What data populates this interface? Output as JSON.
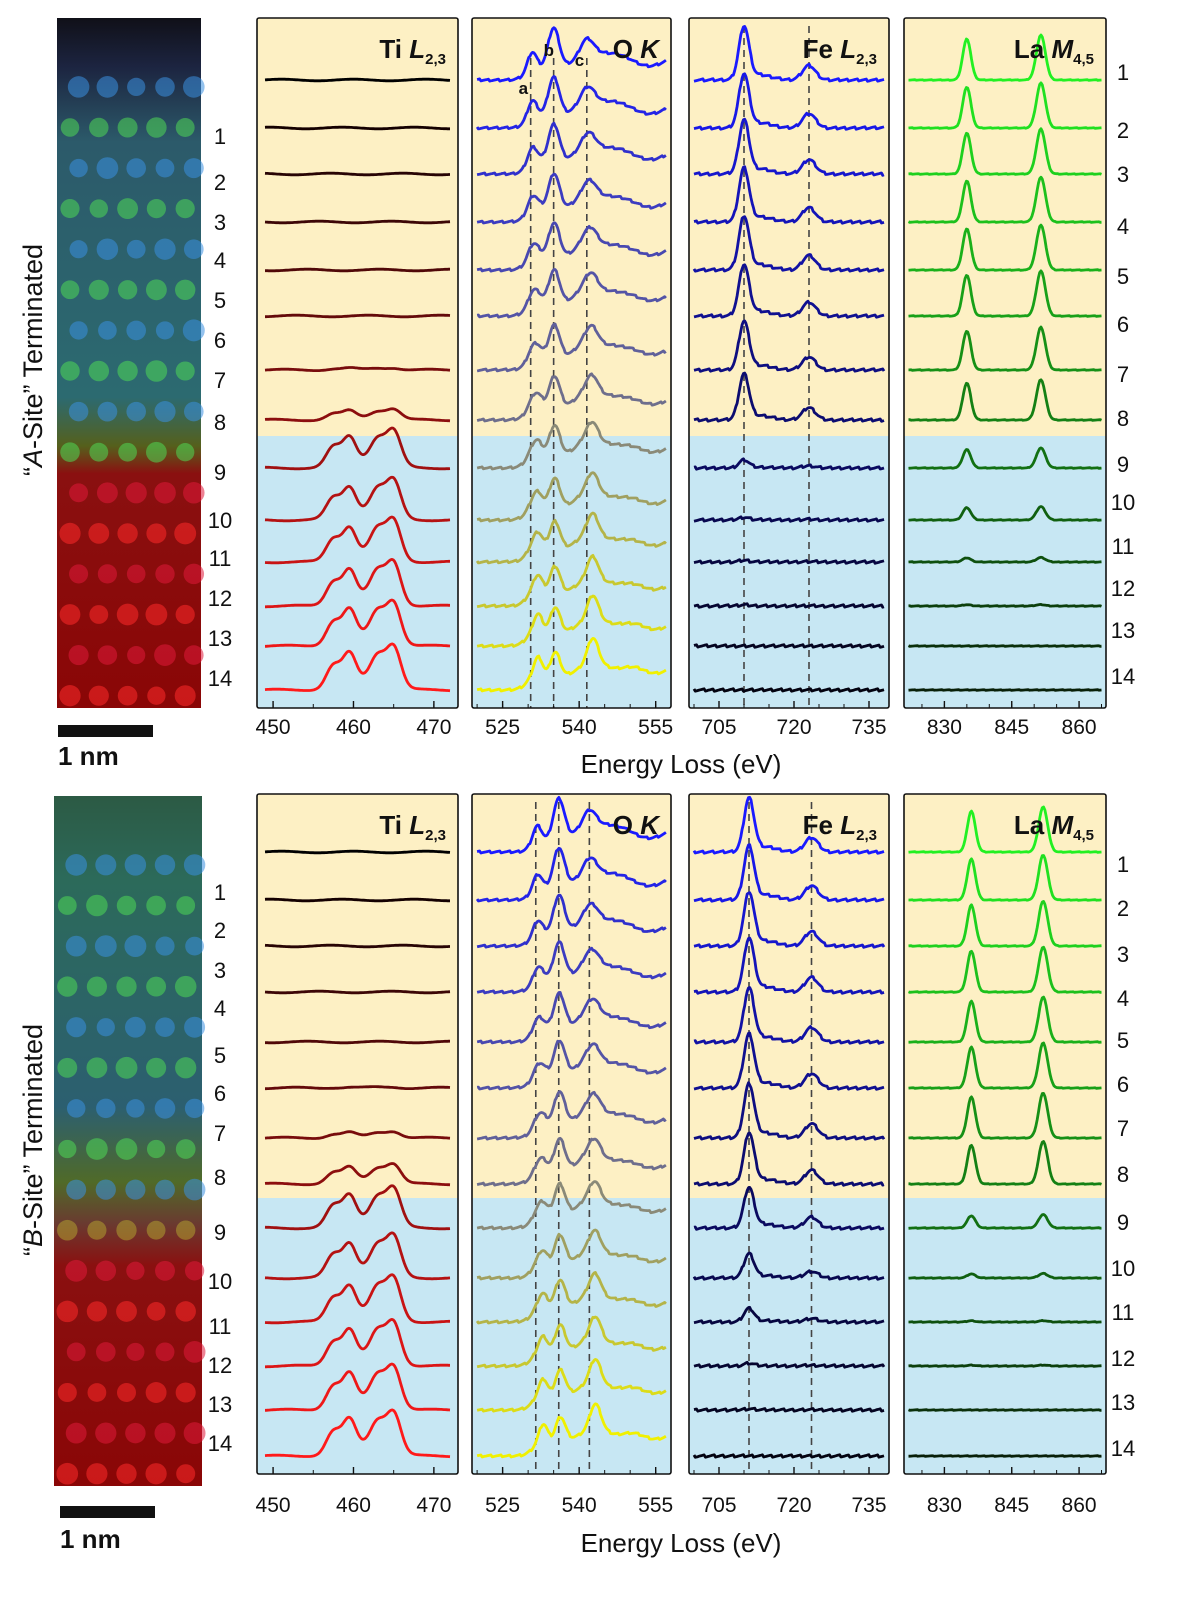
{
  "figure": {
    "scale_bar_label": "1 nm",
    "x_axis_title": "Energy Loss (eV)",
    "layer_numbers": [
      "1",
      "2",
      "3",
      "4",
      "5",
      "6",
      "7",
      "8",
      "9",
      "10",
      "11",
      "12",
      "13",
      "14"
    ]
  },
  "colors": {
    "film_background": "#fdf0c4",
    "substrate_background": "#c7e7f3",
    "axis_frame": "#111111"
  },
  "chart_data": [
    {
      "type": "line",
      "title": "Ti L2,3",
      "title_main": "Ti ",
      "title_sym": "L",
      "title_sub": "2,3",
      "panel_group": "A-Site Terminated",
      "x_range": [
        448,
        473
      ],
      "ticks": [
        450,
        460,
        470
      ],
      "tick_labels": [
        "450",
        "460",
        "470"
      ],
      "series_count": 14,
      "peaks": [
        457.5,
        459.5,
        463.0,
        465.0
      ],
      "peak_amplitude_by_layer": [
        0,
        0,
        0,
        0,
        0,
        0,
        0.05,
        0.25,
        0.85,
        0.9,
        0.95,
        1.0,
        1.0,
        1.0
      ],
      "colors": [
        "#000000",
        "#140000",
        "#280404",
        "#3c0606",
        "#500808",
        "#640a0a",
        "#780c0c",
        "#8c0e0e",
        "#a01010",
        "#b41212",
        "#c81414",
        "#dc1616",
        "#ee1818",
        "#ff1a1a"
      ]
    },
    {
      "type": "line",
      "title": "O K",
      "title_main": "O ",
      "title_sym": "K",
      "title_sub": "",
      "panel_group": "A-Site Terminated",
      "x_range": [
        519,
        558
      ],
      "ticks": [
        525,
        540,
        555
      ],
      "tick_labels": [
        "525",
        "540",
        "555"
      ],
      "dashed_lines": [
        530.5,
        535.0,
        541.5
      ],
      "peak_labels": [
        "a",
        "b",
        "c"
      ],
      "series_count": 14,
      "colors": [
        "#1a1aff",
        "#2424e6",
        "#3030cc",
        "#3c3cc0",
        "#4848b0",
        "#5454a6",
        "#60609a",
        "#6e6e8c",
        "#8a8a78",
        "#a0a060",
        "#b4b448",
        "#c8c830",
        "#dcdc18",
        "#f0f000"
      ]
    },
    {
      "type": "line",
      "title": "Fe L2,3",
      "title_main": "Fe ",
      "title_sym": "L",
      "title_sub": "2,3",
      "panel_group": "A-Site Terminated",
      "x_range": [
        699,
        739
      ],
      "ticks": [
        705,
        720,
        735
      ],
      "tick_labels": [
        "705",
        "720",
        "735"
      ],
      "dashed_lines": [
        710.0,
        723.0
      ],
      "peaks": [
        710.0,
        723.0
      ],
      "peak_amplitude_by_layer": [
        1.0,
        1.0,
        1.0,
        1.0,
        1.0,
        0.95,
        0.9,
        0.85,
        0.15,
        0.05,
        0.03,
        0.02,
        0.0,
        0.0
      ],
      "series_count": 14,
      "colors": [
        "#1a1aff",
        "#1818e6",
        "#1616cc",
        "#1414b8",
        "#1212a4",
        "#101090",
        "#0e0e80",
        "#0c0c70",
        "#0a0a60",
        "#080850",
        "#060640",
        "#050530",
        "#040420",
        "#030310"
      ]
    },
    {
      "type": "line",
      "title": "La M4,5",
      "title_main": "La ",
      "title_sym": "M",
      "title_sub": "4,5",
      "panel_group": "A-Site Terminated",
      "x_range": [
        821,
        866
      ],
      "ticks": [
        830,
        845,
        860
      ],
      "tick_labels": [
        "830",
        "845",
        "860"
      ],
      "peaks": [
        835.0,
        851.5
      ],
      "peak_amplitude_by_layer": [
        1.0,
        1.0,
        1.0,
        1.0,
        1.0,
        1.0,
        0.95,
        0.9,
        0.45,
        0.3,
        0.1,
        0.03,
        0.0,
        0.0
      ],
      "series_count": 14,
      "colors": [
        "#22f022",
        "#20e020",
        "#1ed01e",
        "#1cc01c",
        "#1ab01a",
        "#18a018",
        "#169016",
        "#148014",
        "#127012",
        "#106010",
        "#0e500e",
        "#0c400c",
        "#0a300a",
        "#082008"
      ]
    },
    {
      "type": "line",
      "title": "Ti L2,3",
      "title_main": "Ti ",
      "title_sym": "L",
      "title_sub": "2,3",
      "panel_group": "B-Site Terminated",
      "x_range": [
        448,
        473
      ],
      "ticks": [
        450,
        460,
        470
      ],
      "tick_labels": [
        "450",
        "460",
        "470"
      ],
      "series_count": 14,
      "peaks": [
        457.5,
        459.5,
        463.0,
        465.0
      ],
      "peak_amplitude_by_layer": [
        0,
        0,
        0,
        0,
        0,
        0.02,
        0.15,
        0.45,
        0.9,
        0.95,
        1.0,
        1.0,
        1.0,
        1.0
      ],
      "colors": [
        "#000000",
        "#140000",
        "#280404",
        "#3c0606",
        "#500808",
        "#640a0a",
        "#780c0c",
        "#8c0e0e",
        "#a01010",
        "#b41212",
        "#c81414",
        "#dc1616",
        "#ee1818",
        "#ff1a1a"
      ]
    },
    {
      "type": "line",
      "title": "O K",
      "title_main": "O ",
      "title_sym": "K",
      "title_sub": "",
      "panel_group": "B-Site Terminated",
      "x_range": [
        519,
        558
      ],
      "ticks": [
        525,
        540,
        555
      ],
      "tick_labels": [
        "525",
        "540",
        "555"
      ],
      "dashed_lines": [
        531.5,
        536.0,
        542.0
      ],
      "series_count": 14,
      "colors": [
        "#1a1aff",
        "#2424e6",
        "#3030cc",
        "#3c3cc0",
        "#4848b0",
        "#5454a6",
        "#60609a",
        "#6e6e8c",
        "#8a8a78",
        "#a0a060",
        "#b4b448",
        "#c8c830",
        "#dcdc18",
        "#f0f000"
      ]
    },
    {
      "type": "line",
      "title": "Fe L2,3",
      "title_main": "Fe ",
      "title_sym": "L",
      "title_sub": "2,3",
      "panel_group": "B-Site Terminated",
      "x_range": [
        699,
        739
      ],
      "ticks": [
        705,
        720,
        735
      ],
      "tick_labels": [
        "705",
        "720",
        "735"
      ],
      "dashed_lines": [
        711.0,
        723.5
      ],
      "peaks": [
        711.0,
        723.5
      ],
      "peak_amplitude_by_layer": [
        1.0,
        1.0,
        1.0,
        1.0,
        1.0,
        1.0,
        1.0,
        0.95,
        0.75,
        0.45,
        0.25,
        0.05,
        0.02,
        0.0
      ],
      "series_count": 14,
      "colors": [
        "#1a1aff",
        "#1818e6",
        "#1616cc",
        "#1414b8",
        "#1212a4",
        "#101090",
        "#0e0e80",
        "#0c0c70",
        "#0a0a60",
        "#080850",
        "#060640",
        "#050530",
        "#040420",
        "#030310"
      ]
    },
    {
      "type": "line",
      "title": "La M4,5",
      "title_main": "La ",
      "title_sym": "M",
      "title_sub": "4,5",
      "panel_group": "B-Site Terminated",
      "x_range": [
        821,
        866
      ],
      "ticks": [
        830,
        845,
        860
      ],
      "tick_labels": [
        "830",
        "845",
        "860"
      ],
      "peaks": [
        836.0,
        852.0
      ],
      "peak_amplitude_by_layer": [
        1.0,
        1.0,
        1.0,
        1.0,
        1.0,
        1.0,
        1.0,
        0.95,
        0.3,
        0.1,
        0.03,
        0.02,
        0.0,
        0.0
      ],
      "series_count": 14,
      "colors": [
        "#22f022",
        "#20e020",
        "#1ed01e",
        "#1cc01c",
        "#1ab01a",
        "#18a018",
        "#169016",
        "#148014",
        "#127012",
        "#106010",
        "#0e500e",
        "#0c400c",
        "#0a300a",
        "#082008"
      ]
    }
  ],
  "rows": [
    {
      "terminated_label_quote_open": "“",
      "terminated_label_italic": "A",
      "terminated_label_rest": "-Site” Terminated",
      "terminated_label": "“A-Site” Terminated"
    },
    {
      "terminated_label_quote_open": "“",
      "terminated_label_italic": "B",
      "terminated_label_rest": "-Site” Terminated",
      "terminated_label": "“B-Site” Terminated"
    }
  ]
}
